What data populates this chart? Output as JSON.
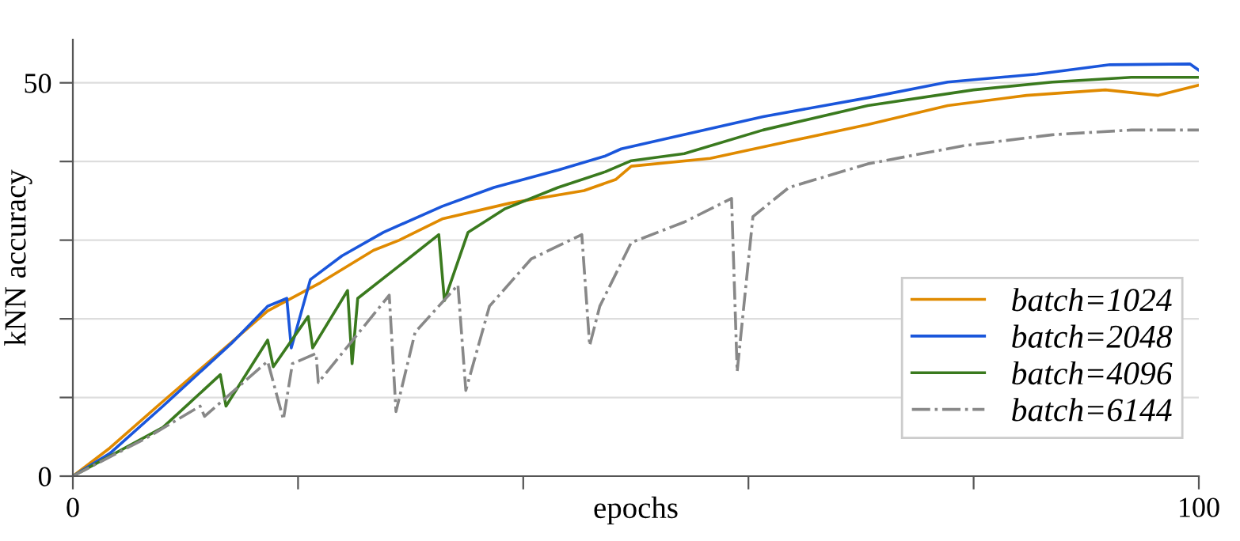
{
  "chart_data": {
    "type": "line",
    "xlabel": "epochs",
    "ylabel": "kNN accuracy",
    "xlim": [
      0,
      100
    ],
    "ylim": [
      0,
      55.5
    ],
    "xticks": [
      0,
      {
        "value": 20,
        "label": null
      },
      {
        "value": 40,
        "label": null
      },
      {
        "value": 60,
        "label": null
      },
      {
        "value": 80,
        "label": null
      },
      100
    ],
    "yticks": [
      0,
      {
        "value": 10,
        "label": null
      },
      {
        "value": 20,
        "label": null
      },
      {
        "value": 30,
        "label": null
      },
      {
        "value": 40,
        "label": null
      },
      50
    ],
    "grid": "y",
    "legend": "bottom right",
    "marker": "none",
    "series": [
      {
        "name": "batch=1024",
        "color": "#e08a00",
        "line_style": "solid",
        "x": [
          0,
          3.3,
          8.0,
          12.7,
          17.3,
          22.0,
          26.7,
          29.0,
          32.8,
          38.8,
          45.4,
          48.2,
          49.6,
          56.6,
          61.8,
          70.6,
          77.7,
          84.7,
          91.7,
          96.4,
          100
        ],
        "values": [
          0,
          3.6,
          9.5,
          15.3,
          21.0,
          24.6,
          28.7,
          30.0,
          32.7,
          34.7,
          36.3,
          37.7,
          39.4,
          40.4,
          42.0,
          44.7,
          47.1,
          48.4,
          49.1,
          48.4,
          49.7
        ]
      },
      {
        "name": "batch=2048",
        "color": "#1a56db",
        "line_style": "solid",
        "x": [
          0,
          3.3,
          8.0,
          14.1,
          17.3,
          19.0,
          19.4,
          21.1,
          23.9,
          27.6,
          32.8,
          37.4,
          43.1,
          47.3,
          48.7,
          61.3,
          70.6,
          77.7,
          85.6,
          92.1,
          99.2,
          100
        ],
        "values": [
          0,
          2.9,
          8.9,
          16.9,
          21.6,
          22.6,
          16.3,
          25.0,
          28.0,
          31.0,
          34.3,
          36.7,
          38.9,
          40.7,
          41.6,
          45.7,
          48.1,
          50.1,
          51.1,
          52.3,
          52.4,
          51.6
        ]
      },
      {
        "name": "batch=4096",
        "color": "#3a7a1e",
        "line_style": "solid",
        "x": [
          0,
          8.0,
          13.1,
          13.6,
          17.3,
          17.8,
          20.9,
          21.3,
          24.4,
          24.8,
          25.3,
          28.6,
          32.5,
          33.0,
          35.1,
          38.4,
          43.1,
          47.3,
          49.6,
          54.3,
          61.3,
          70.6,
          80.0,
          87.0,
          94.0,
          100
        ],
        "values": [
          0,
          6.2,
          12.9,
          8.9,
          17.3,
          13.9,
          20.3,
          16.3,
          23.6,
          14.3,
          22.6,
          26.3,
          30.7,
          22.3,
          31.0,
          34.0,
          36.7,
          38.7,
          40.1,
          41.0,
          44.0,
          47.1,
          49.1,
          50.1,
          50.7,
          50.7
        ]
      },
      {
        "name": "batch=6144",
        "color": "#888888",
        "line_style": "dashdot",
        "x": [
          0,
          6.6,
          11.3,
          11.7,
          17.3,
          18.7,
          19.5,
          21.6,
          21.8,
          28.1,
          28.7,
          30.4,
          34.2,
          34.9,
          37.0,
          40.7,
          45.2,
          45.9,
          46.8,
          49.6,
          54.3,
          58.5,
          59.0,
          60.4,
          63.6,
          70.6,
          79.1,
          87.0,
          94.0,
          100
        ],
        "values": [
          0,
          4.9,
          8.9,
          7.6,
          14.6,
          7.2,
          14.3,
          15.6,
          11.9,
          23.0,
          8.2,
          18.3,
          24.3,
          10.9,
          21.6,
          27.6,
          30.7,
          16.6,
          21.6,
          29.7,
          32.3,
          35.3,
          13.3,
          33.0,
          36.7,
          39.7,
          42.0,
          43.4,
          44.0,
          44.0
        ]
      }
    ]
  }
}
